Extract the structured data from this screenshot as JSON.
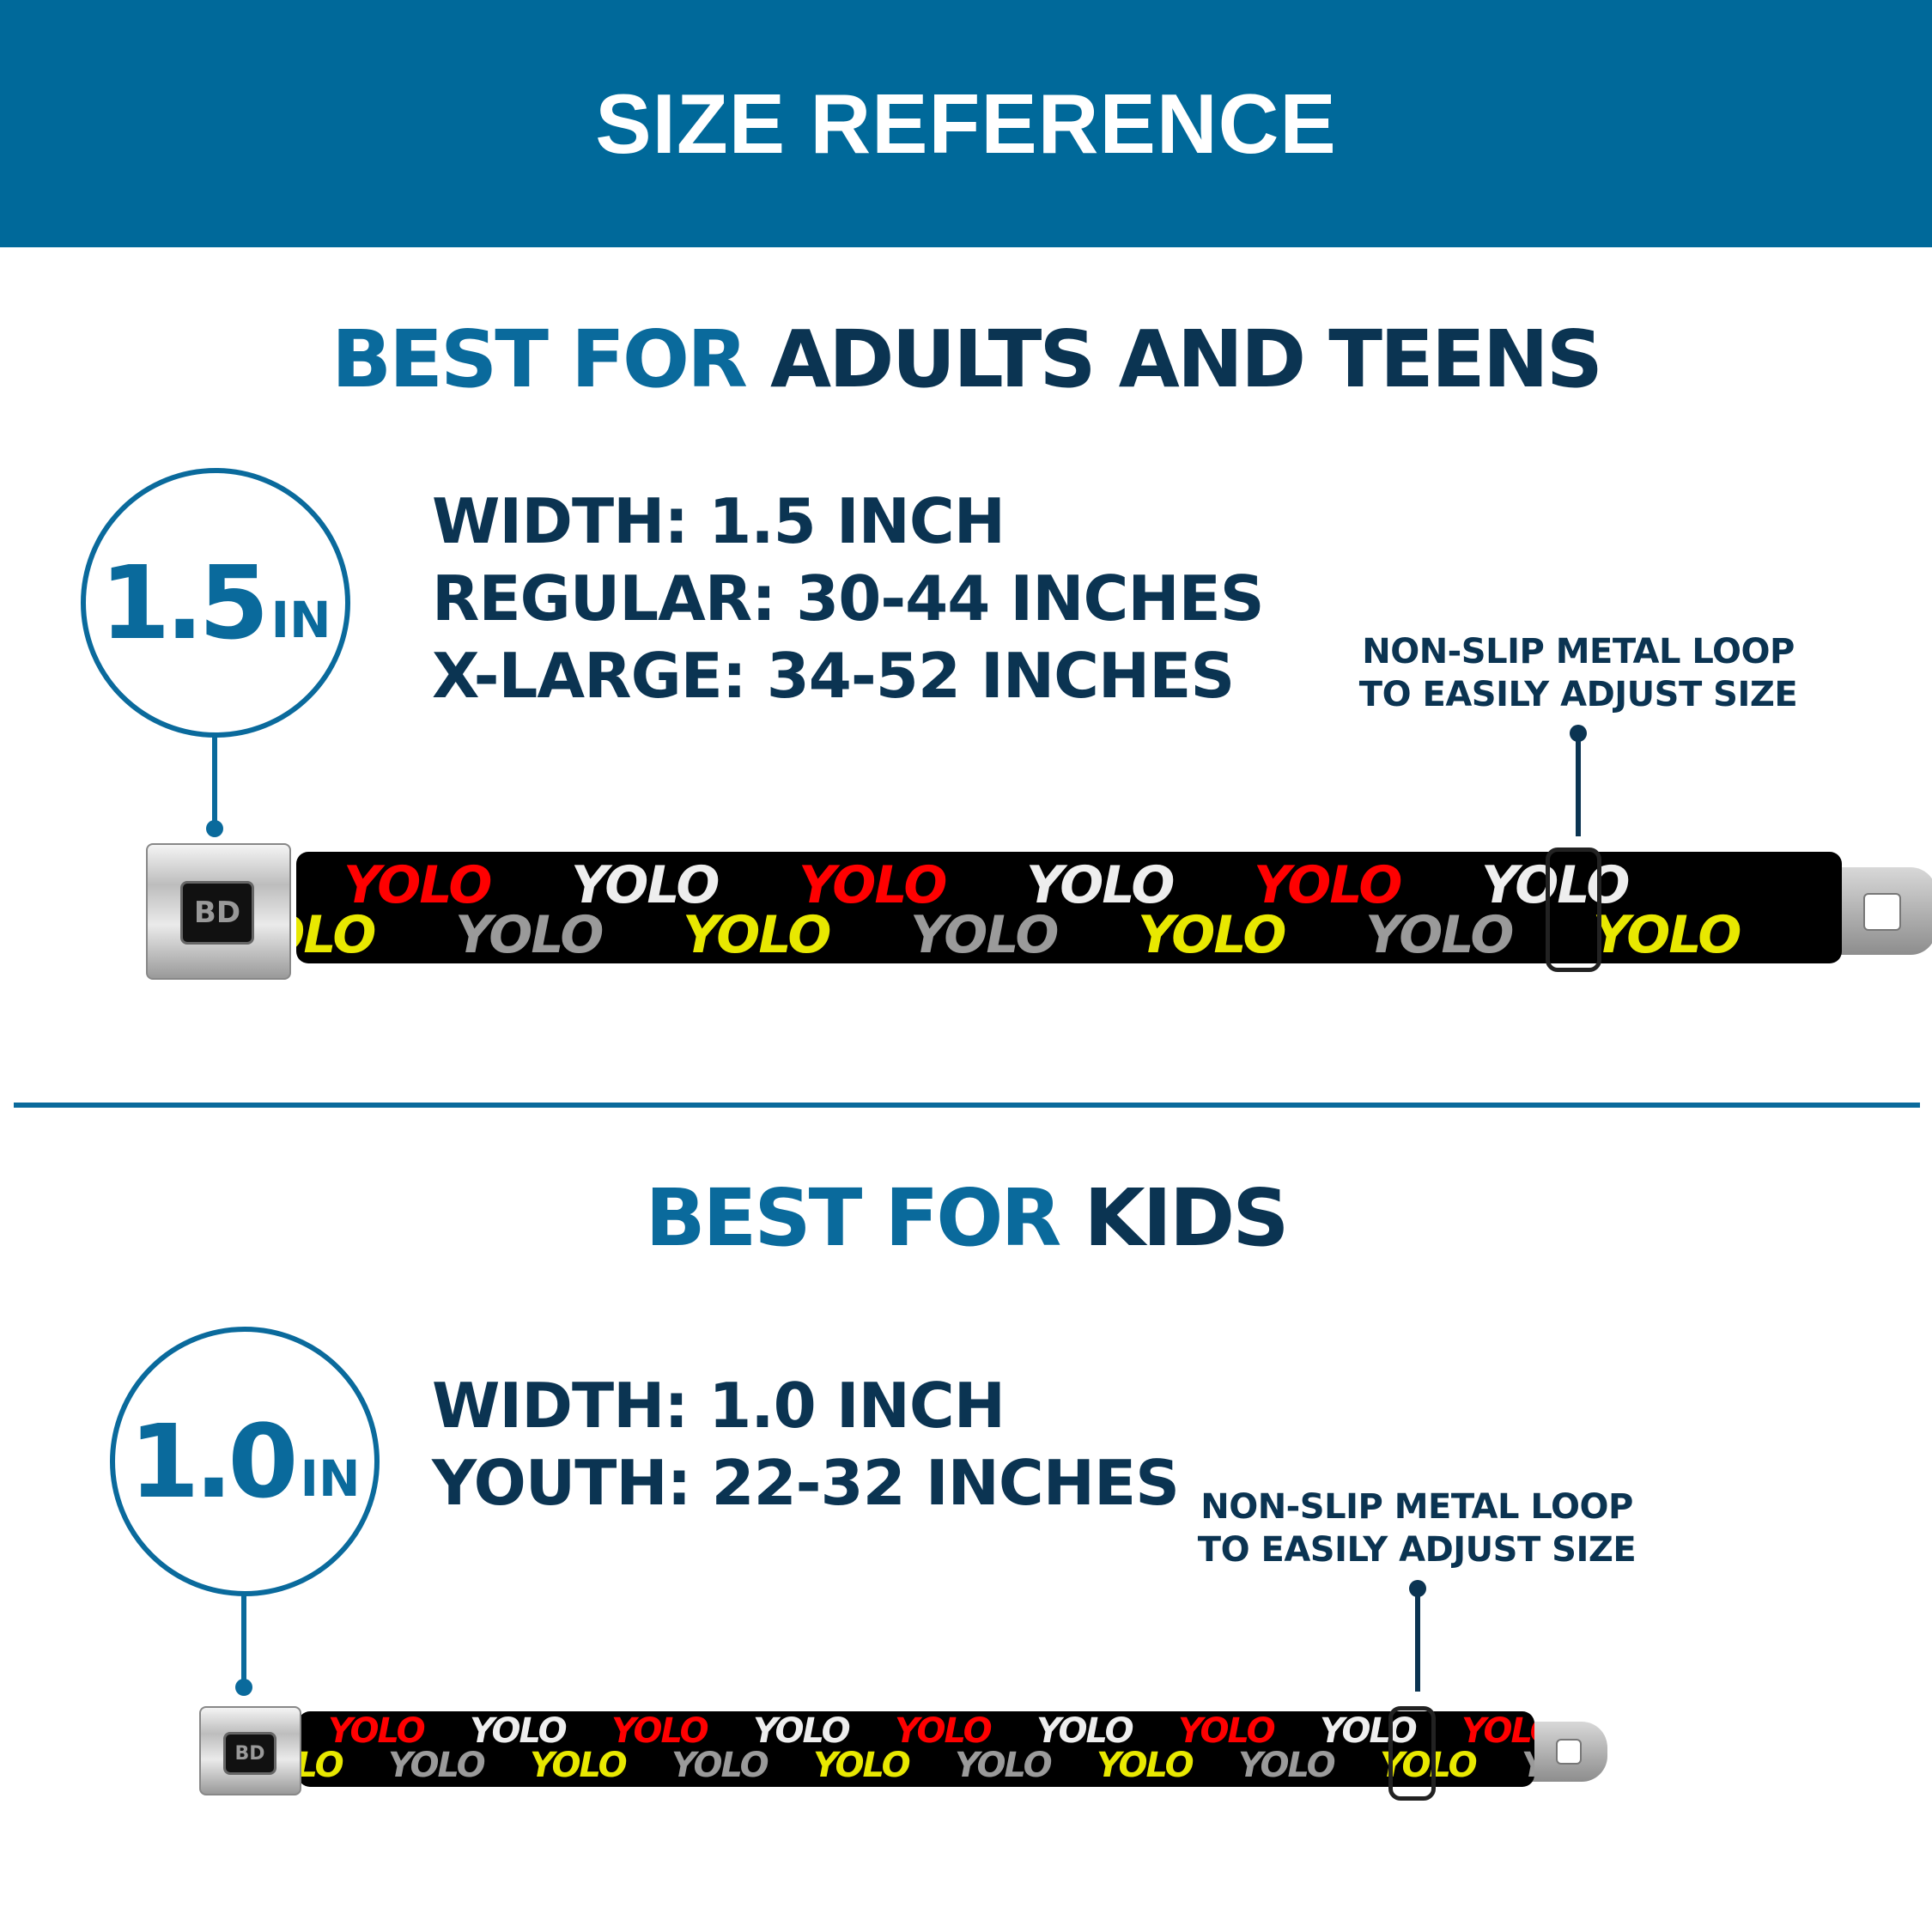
{
  "header": {
    "title": "SIZE REFERENCE"
  },
  "colors": {
    "brand_blue": "#00699a",
    "navy": "#0b3452",
    "strap": "#000000",
    "yolo_red": "#ff0000",
    "yolo_white": "#eeeeee",
    "yolo_yellow": "#e8e800",
    "yolo_gray": "#9a9a9a"
  },
  "adults": {
    "title_accent": "BEST FOR",
    "title_strong": "ADULTS AND TEENS",
    "badge_number": "1.5",
    "badge_unit": "IN",
    "specs": [
      "WIDTH: 1.5 INCH",
      "REGULAR: 30-44 INCHES",
      "X-LARGE: 34-52 INCHES"
    ],
    "note": [
      "NON-SLIP METAL LOOP",
      "TO EASILY ADJUST SIZE"
    ]
  },
  "kids": {
    "title_accent": "BEST FOR",
    "title_strong": "KIDS",
    "badge_number": "1.0",
    "badge_unit": "IN",
    "specs": [
      "WIDTH: 1.0 INCH",
      "YOUTH: 22-32 INCHES"
    ],
    "note": [
      "NON-SLIP METAL LOOP",
      "TO EASILY ADJUST SIZE"
    ]
  },
  "belt": {
    "pattern_word": "YOLO",
    "emblem": "BD"
  }
}
